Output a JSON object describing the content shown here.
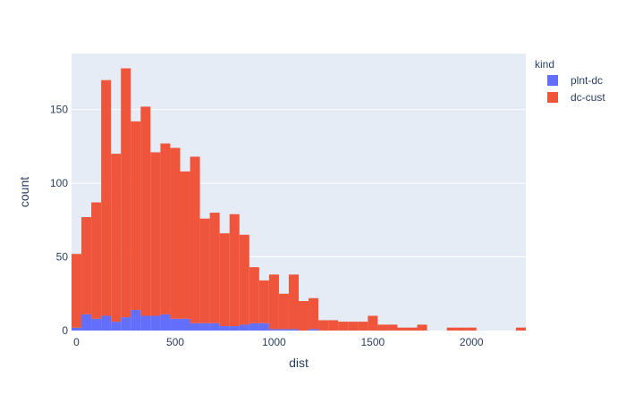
{
  "chart_data": {
    "type": "bar",
    "stacked": true,
    "bin_width": 50,
    "x_start": -25,
    "xlabel": "dist",
    "ylabel": "count",
    "xlim": [
      -25,
      2275
    ],
    "ylim": [
      0,
      188
    ],
    "xticks": [
      0,
      500,
      1000,
      1500,
      2000
    ],
    "yticks": [
      0,
      50,
      100,
      150
    ],
    "legend": {
      "title": "kind",
      "position": "right"
    },
    "series": [
      {
        "name": "plnt-dc",
        "color": "#636efa",
        "values": [
          2,
          11,
          8,
          10,
          6,
          9,
          14,
          10,
          10,
          11,
          8,
          8,
          5,
          5,
          5,
          3,
          3,
          4,
          5,
          5,
          1,
          1,
          1,
          0,
          1,
          0,
          0,
          0,
          0,
          0,
          0,
          0,
          0,
          0,
          0,
          0,
          0,
          0,
          0,
          0,
          0,
          0,
          0,
          0,
          0,
          0
        ]
      },
      {
        "name": "dc-cust",
        "color": "#ef553b",
        "values": [
          50,
          66,
          79,
          160,
          114,
          169,
          128,
          142,
          111,
          116,
          116,
          100,
          113,
          71,
          75,
          63,
          76,
          61,
          38,
          29,
          37,
          24,
          37,
          20,
          21,
          7,
          7,
          6,
          6,
          6,
          10,
          4,
          4,
          2,
          2,
          4,
          0,
          0,
          2,
          2,
          2,
          0,
          0,
          0,
          0,
          2
        ]
      }
    ]
  }
}
